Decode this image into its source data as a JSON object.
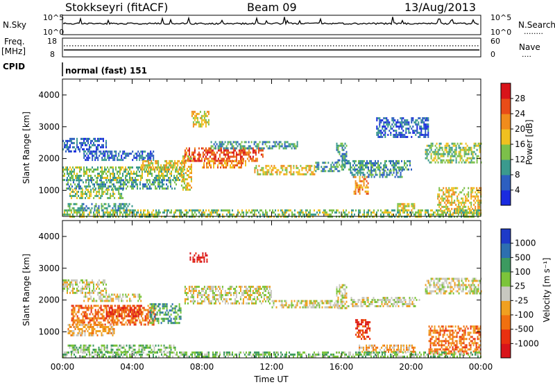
{
  "header": {
    "station": "Stokkseyri (fitACF)",
    "beam": "Beam 09",
    "date": "13/Aug/2013"
  },
  "top_panels": {
    "nsky": {
      "label": "N.Sky",
      "left_ticks": [
        "10^5",
        "10^0"
      ],
      "right_ticks": [
        "10^5",
        "10^0"
      ],
      "right_label": "N.Search",
      "search_legend_line": "........"
    },
    "freq": {
      "label_line1": "Freq.",
      "label_line2": "[MHz]",
      "left_ticks": [
        "18",
        "8"
      ],
      "right_ticks": [
        "60",
        "0"
      ],
      "right_label": "Nave",
      "nave_legend_line": "...."
    },
    "cpid": {
      "label": "CPID",
      "mode_text": "normal (fast) 151"
    }
  },
  "chart_data": [
    {
      "type": "heatmap",
      "name": "power-panel",
      "ylabel": "Slant Range [km]",
      "ylim": [
        180,
        4500
      ],
      "y_ticks": [
        1000,
        2000,
        3000,
        4000
      ],
      "x_range_hours": [
        0,
        24
      ],
      "colorbar": {
        "label": "Power [dB]",
        "ticks": [
          "4",
          "8",
          "12",
          "16",
          "20",
          "24",
          "28"
        ],
        "colors": [
          "#1a2be0",
          "#2d5fc0",
          "#3b9a8e",
          "#7cc04a",
          "#f0c020",
          "#f08c1c",
          "#e84c18",
          "#d8141a"
        ]
      },
      "echo_bands": [
        {
          "t0": 0.0,
          "t1": 2.5,
          "r0": 2250,
          "r1": 2650,
          "level": 1
        },
        {
          "t0": 1.2,
          "t1": 5.2,
          "r0": 1950,
          "r1": 2250,
          "level": 1
        },
        {
          "t0": 0.0,
          "t1": 7.0,
          "r0": 1350,
          "r1": 1750,
          "level": 3
        },
        {
          "t0": 0.2,
          "t1": 6.5,
          "r0": 1050,
          "r1": 1350,
          "level": 2
        },
        {
          "t0": 0.4,
          "t1": 3.5,
          "r0": 750,
          "r1": 1050,
          "level": 3
        },
        {
          "t0": 0.3,
          "t1": 4.0,
          "r0": 400,
          "r1": 600,
          "level": 2
        },
        {
          "t0": 4.5,
          "t1": 7.0,
          "r0": 1650,
          "r1": 1950,
          "level": 4
        },
        {
          "t0": 6.8,
          "t1": 7.4,
          "r0": 1000,
          "r1": 2100,
          "level": 4
        },
        {
          "t0": 7.0,
          "t1": 11.5,
          "r0": 1950,
          "r1": 2350,
          "level": 6
        },
        {
          "t0": 8.0,
          "t1": 10.5,
          "r0": 1700,
          "r1": 1950,
          "level": 5
        },
        {
          "t0": 7.4,
          "t1": 8.4,
          "r0": 3000,
          "r1": 3500,
          "level": 4
        },
        {
          "t0": 8.5,
          "t1": 13.5,
          "r0": 2300,
          "r1": 2550,
          "level": 2
        },
        {
          "t0": 11.0,
          "t1": 14.5,
          "r0": 1500,
          "r1": 1800,
          "level": 4
        },
        {
          "t0": 14.5,
          "t1": 15.9,
          "r0": 1600,
          "r1": 1900,
          "level": 2
        },
        {
          "t0": 15.7,
          "t1": 16.3,
          "r0": 1750,
          "r1": 2500,
          "level": 2
        },
        {
          "t0": 16.0,
          "t1": 20.0,
          "r0": 1650,
          "r1": 1950,
          "level": 2
        },
        {
          "t0": 16.5,
          "t1": 19.5,
          "r0": 1400,
          "r1": 1650,
          "level": 2
        },
        {
          "t0": 18.0,
          "t1": 21.0,
          "r0": 2700,
          "r1": 3300,
          "level": 1
        },
        {
          "t0": 16.7,
          "t1": 17.5,
          "r0": 900,
          "r1": 1450,
          "level": 5
        },
        {
          "t0": 19.2,
          "t1": 20.2,
          "r0": 400,
          "r1": 600,
          "level": 4
        },
        {
          "t0": 20.8,
          "t1": 24.0,
          "r0": 1900,
          "r1": 2500,
          "level": 3
        },
        {
          "t0": 21.5,
          "t1": 24.0,
          "r0": 300,
          "r1": 1100,
          "level": 4
        },
        {
          "t0": 0.0,
          "t1": 24.0,
          "r0": 200,
          "r1": 400,
          "level": 3
        }
      ]
    },
    {
      "type": "heatmap",
      "name": "velocity-panel",
      "ylabel": "Slant Range [km]",
      "xlabel": "Time UT",
      "ylim": [
        180,
        4500
      ],
      "y_ticks": [
        1000,
        2000,
        3000,
        4000
      ],
      "x_range_hours": [
        0,
        24
      ],
      "x_tick_labels": [
        "00:00",
        "04:00",
        "08:00",
        "12:00",
        "16:00",
        "20:00",
        "00:00"
      ],
      "colorbar": {
        "label": "Velocity [m s⁻¹]",
        "ticks": [
          "1000",
          "500",
          "100",
          "25",
          "-25",
          "-100",
          "-500",
          "-1000"
        ],
        "colors": [
          "#1e3ac8",
          "#2d6fb0",
          "#3c9a60",
          "#7cc43a",
          "#c8c8c0",
          "#f0a020",
          "#f07010",
          "#e83010",
          "#d8141a"
        ]
      },
      "echo_bands": [
        {
          "t0": 0.0,
          "t1": 2.5,
          "r0": 2250,
          "r1": 2650,
          "level": 4
        },
        {
          "t0": 1.2,
          "t1": 4.5,
          "r0": 1950,
          "r1": 2200,
          "level": 4
        },
        {
          "t0": 0.5,
          "t1": 5.3,
          "r0": 1250,
          "r1": 1850,
          "level": 6
        },
        {
          "t0": 2.5,
          "t1": 4.5,
          "r0": 1500,
          "r1": 1850,
          "level": 7
        },
        {
          "t0": 0.3,
          "t1": 3.0,
          "r0": 900,
          "r1": 1250,
          "level": 5
        },
        {
          "t0": 0.3,
          "t1": 6.5,
          "r0": 400,
          "r1": 600,
          "level": 3
        },
        {
          "t0": 5.0,
          "t1": 6.8,
          "r0": 1300,
          "r1": 1900,
          "level": 2
        },
        {
          "t0": 7.0,
          "t1": 12.0,
          "r0": 1900,
          "r1": 2450,
          "level": 4
        },
        {
          "t0": 7.3,
          "t1": 8.3,
          "r0": 3200,
          "r1": 3500,
          "level": 8
        },
        {
          "t0": 12.0,
          "t1": 15.8,
          "r0": 1750,
          "r1": 2000,
          "level": 4
        },
        {
          "t0": 15.7,
          "t1": 16.3,
          "r0": 1750,
          "r1": 2500,
          "level": 4
        },
        {
          "t0": 16.3,
          "t1": 20.5,
          "r0": 1800,
          "r1": 2100,
          "level": 4
        },
        {
          "t0": 16.8,
          "t1": 17.6,
          "r0": 800,
          "r1": 1400,
          "level": 7
        },
        {
          "t0": 17.0,
          "t1": 20.2,
          "r0": 400,
          "r1": 600,
          "level": 5
        },
        {
          "t0": 20.8,
          "t1": 24.0,
          "r0": 2200,
          "r1": 2700,
          "level": 4
        },
        {
          "t0": 21.0,
          "t1": 24.0,
          "r0": 300,
          "r1": 1200,
          "level": 6
        },
        {
          "t0": 0.0,
          "t1": 24.0,
          "r0": 200,
          "r1": 380,
          "level": 3
        }
      ]
    }
  ]
}
